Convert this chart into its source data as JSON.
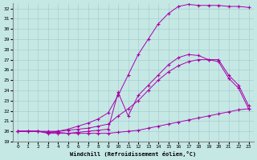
{
  "xlabel": "Windchill (Refroidissement éolien,°C)",
  "xlim": [
    -0.5,
    23.5
  ],
  "ylim": [
    19,
    32.5
  ],
  "xticks": [
    0,
    1,
    2,
    3,
    4,
    5,
    6,
    7,
    8,
    9,
    10,
    11,
    12,
    13,
    14,
    15,
    16,
    17,
    18,
    19,
    20,
    21,
    22,
    23
  ],
  "yticks": [
    19,
    20,
    21,
    22,
    23,
    24,
    25,
    26,
    27,
    28,
    29,
    30,
    31,
    32
  ],
  "bg_color": "#c5e8e5",
  "line_color": "#aa00aa",
  "line1_x": [
    0,
    1,
    2,
    3,
    4,
    5,
    6,
    7,
    8,
    9,
    10,
    11,
    12,
    13,
    14,
    15,
    16,
    17,
    18,
    19,
    20,
    21,
    22,
    23
  ],
  "line1_y": [
    20,
    20,
    20,
    19.9,
    19.9,
    19.8,
    19.8,
    19.8,
    19.8,
    19.8,
    19.9,
    20.0,
    20.1,
    20.3,
    20.5,
    20.7,
    20.9,
    21.1,
    21.3,
    21.5,
    21.7,
    21.9,
    22.1,
    22.2
  ],
  "line2_x": [
    0,
    1,
    2,
    3,
    4,
    5,
    6,
    7,
    8,
    9,
    10,
    11,
    12,
    13,
    14,
    15,
    16,
    17,
    18,
    19,
    20,
    21,
    22,
    23
  ],
  "line2_y": [
    20,
    20,
    20,
    19.9,
    20.0,
    20.1,
    20.2,
    20.3,
    20.5,
    20.7,
    21.5,
    22.2,
    23.0,
    24.0,
    25.0,
    25.8,
    26.4,
    26.8,
    27.0,
    27.0,
    26.8,
    25.2,
    24.2,
    22.2
  ],
  "line3_x": [
    0,
    1,
    2,
    3,
    4,
    5,
    6,
    7,
    8,
    9,
    10,
    11,
    12,
    13,
    14,
    15,
    16,
    17,
    18,
    19,
    20,
    21,
    22,
    23
  ],
  "line3_y": [
    20,
    20,
    20,
    20,
    20,
    20.2,
    20.5,
    20.8,
    21.2,
    21.8,
    23.5,
    25.5,
    27.5,
    29.0,
    30.5,
    31.5,
    32.2,
    32.4,
    32.3,
    32.3,
    32.3,
    32.2,
    32.2,
    32.1
  ],
  "line4_x": [
    0,
    1,
    2,
    3,
    4,
    5,
    6,
    7,
    8,
    9,
    10,
    11,
    12,
    13,
    14,
    15,
    16,
    17,
    18,
    19,
    20,
    21,
    22,
    23
  ],
  "line4_y": [
    20,
    20,
    20,
    19.8,
    19.8,
    19.8,
    19.9,
    20.0,
    20.1,
    20.2,
    23.8,
    21.5,
    23.5,
    24.5,
    25.5,
    26.5,
    27.2,
    27.5,
    27.4,
    27.0,
    27.0,
    25.5,
    24.5,
    22.5
  ]
}
